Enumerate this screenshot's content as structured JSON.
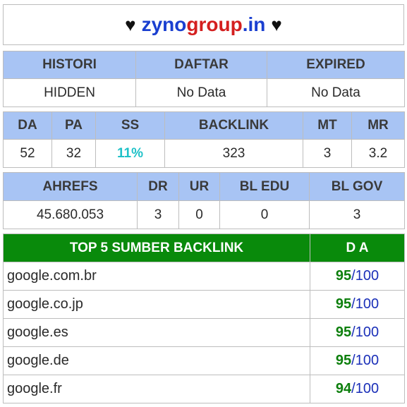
{
  "site": {
    "heart_left": "♥",
    "name_part1": "zyno",
    "name_part2": "group",
    "name_part3": ".in",
    "heart_right": "♥"
  },
  "info": {
    "headers": [
      "HISTORI",
      "DAFTAR",
      "EXPIRED"
    ],
    "values": [
      "HIDDEN",
      "No Data",
      "No Data"
    ]
  },
  "metrics": {
    "headers": [
      "DA",
      "PA",
      "SS",
      "BACKLINK",
      "MT",
      "MR"
    ],
    "values": [
      "52",
      "32",
      "11%",
      "323",
      "3",
      "3.2"
    ]
  },
  "ahrefs": {
    "headers": [
      "AHREFS",
      "DR",
      "UR",
      "BL EDU",
      "BL GOV"
    ],
    "values": [
      "45.680.053",
      "3",
      "0",
      "0",
      "3"
    ]
  },
  "top_backlinks": {
    "header_source": "TOP 5 SUMBER BACKLINK",
    "header_da": "D A",
    "rows": [
      {
        "domain": "google.com.br",
        "da": "95",
        "max": "/100"
      },
      {
        "domain": "google.co.jp",
        "da": "95",
        "max": "/100"
      },
      {
        "domain": "google.es",
        "da": "95",
        "max": "/100"
      },
      {
        "domain": "google.de",
        "da": "95",
        "max": "/100"
      },
      {
        "domain": "google.fr",
        "da": "94",
        "max": "/100"
      }
    ]
  },
  "colors": {
    "header_blue": "#a8c4f4",
    "header_green": "#098a0b",
    "ss_cyan": "#1fc1c8",
    "brand_blue": "#1a3fd0",
    "brand_red": "#d41f1f"
  }
}
